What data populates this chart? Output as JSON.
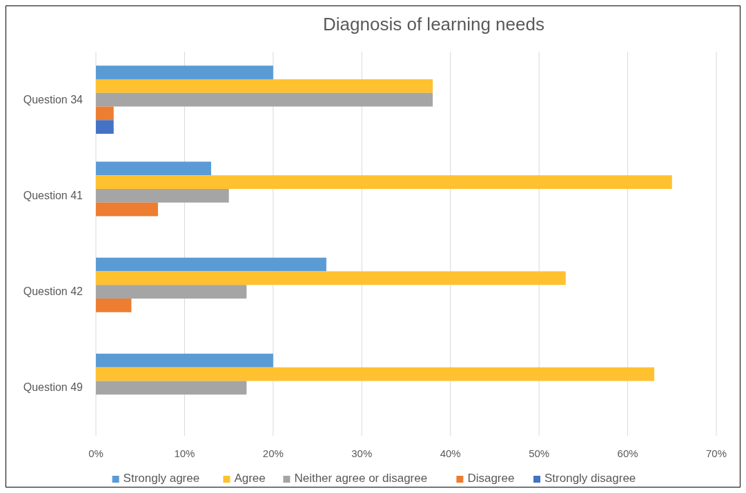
{
  "chart_data": {
    "type": "bar",
    "orientation": "horizontal",
    "title": "Diagnosis of learning needs",
    "categories": [
      "Question 34",
      "Question 41",
      "Question 42",
      "Question 49"
    ],
    "series": [
      {
        "name": "Strongly agree",
        "color": "#5b9bd5",
        "values": [
          20,
          13,
          26,
          20
        ]
      },
      {
        "name": "Agree",
        "color": "#ffc12f",
        "values": [
          38,
          65,
          53,
          63
        ]
      },
      {
        "name": "Neither agree or disagree",
        "color": "#a5a5a5",
        "values": [
          38,
          15,
          17,
          17
        ]
      },
      {
        "name": "Disagree",
        "color": "#ed7d31",
        "values": [
          2,
          7,
          4,
          null
        ]
      },
      {
        "name": "Strongly disagree",
        "color": "#4472c4",
        "values": [
          2,
          null,
          null,
          null
        ]
      }
    ],
    "xlim": [
      0,
      70
    ],
    "xticks": [
      {
        "value": 0,
        "label": "0%"
      },
      {
        "value": 10,
        "label": "10%"
      },
      {
        "value": 20,
        "label": "20%"
      },
      {
        "value": 30,
        "label": "30%"
      },
      {
        "value": 40,
        "label": "40%"
      },
      {
        "value": 50,
        "label": "50%"
      },
      {
        "value": 60,
        "label": "60%"
      },
      {
        "value": 70,
        "label": "70%"
      }
    ],
    "grid": "x",
    "legend": "bottom"
  }
}
